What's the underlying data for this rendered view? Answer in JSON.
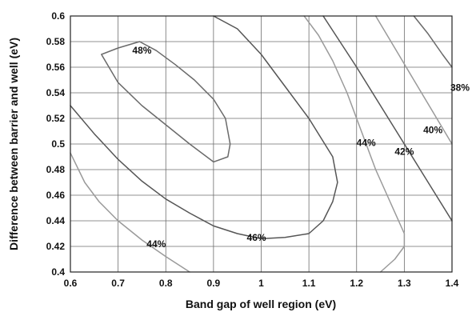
{
  "chart_data": {
    "type": "line",
    "title": "",
    "xlabel": "Band gap of well region (eV)",
    "ylabel": "Difference between barrier and well (eV)",
    "xlim": [
      0.6,
      1.4
    ],
    "ylim": [
      0.4,
      0.6
    ],
    "xticks": [
      0.6,
      0.7,
      0.8,
      0.9,
      1,
      1.1,
      1.2,
      1.3,
      1.4
    ],
    "xtick_labels": [
      "0.6",
      "0.7",
      "0.8",
      "0.9",
      "1",
      "1.1",
      "1.2",
      "1.3",
      "1.4"
    ],
    "yticks": [
      0.4,
      0.42,
      0.44,
      0.46,
      0.48,
      0.5,
      0.52,
      0.54,
      0.56,
      0.58,
      0.6
    ],
    "ytick_labels": [
      "0.4",
      "0.42",
      "0.44",
      "0.46",
      "0.48",
      "0.5",
      "0.52",
      "0.54",
      "0.56",
      "0.58",
      "0.6"
    ],
    "grid": true,
    "series": [
      {
        "name": "48%",
        "color": "#6a6a6a",
        "x": [
          0.745,
          0.7,
          0.665,
          0.7,
          0.75,
          0.8,
          0.85,
          0.9,
          0.93,
          0.935,
          0.925,
          0.9,
          0.86,
          0.82,
          0.78,
          0.745
        ],
        "y": [
          0.58,
          0.575,
          0.57,
          0.548,
          0.53,
          0.515,
          0.5,
          0.486,
          0.49,
          0.5,
          0.52,
          0.535,
          0.55,
          0.562,
          0.573,
          0.58
        ],
        "label_x": 0.75,
        "label_y": 0.573
      },
      {
        "name": "46%",
        "color": "#555555",
        "x": [
          0.6,
          0.65,
          0.7,
          0.75,
          0.8,
          0.85,
          0.9,
          0.95,
          1.0,
          1.05,
          1.1,
          1.13,
          1.15,
          1.16,
          1.15,
          1.1,
          1.05,
          1.0,
          0.95,
          0.9
        ],
        "y": [
          0.53,
          0.508,
          0.488,
          0.471,
          0.457,
          0.446,
          0.436,
          0.43,
          0.426,
          0.427,
          0.43,
          0.44,
          0.455,
          0.47,
          0.49,
          0.52,
          0.545,
          0.57,
          0.59,
          0.6
        ],
        "label_x": 0.99,
        "label_y": 0.427
      },
      {
        "name": "44%",
        "color": "#9a9a9a",
        "x": [
          0.6,
          0.63,
          0.66,
          0.7,
          0.75,
          0.8,
          0.85
        ],
        "y": [
          0.493,
          0.47,
          0.455,
          0.44,
          0.425,
          0.412,
          0.4
        ],
        "label_x": 0.78,
        "label_y": 0.422
      },
      {
        "name": "44%",
        "color": "#9a9a9a",
        "x": [
          1.09,
          1.12,
          1.15,
          1.18,
          1.21,
          1.24,
          1.27,
          1.3,
          1.3,
          1.28,
          1.25
        ],
        "y": [
          0.6,
          0.585,
          0.565,
          0.54,
          0.51,
          0.48,
          0.455,
          0.43,
          0.42,
          0.41,
          0.4
        ],
        "label_x": 1.22,
        "label_y": 0.501
      },
      {
        "name": "42%",
        "color": "#555555",
        "x": [
          1.13,
          1.2,
          1.25,
          1.3,
          1.35,
          1.4
        ],
        "y": [
          0.6,
          0.56,
          0.53,
          0.5,
          0.47,
          0.44
        ],
        "label_x": 1.3,
        "label_y": 0.494
      },
      {
        "name": "40%",
        "color": "#9a9a9a",
        "x": [
          1.24,
          1.28,
          1.32,
          1.36,
          1.4
        ],
        "y": [
          0.6,
          0.575,
          0.55,
          0.525,
          0.5
        ],
        "label_x": 1.36,
        "label_y": 0.511
      },
      {
        "name": "38%",
        "color": "#6a6a6a",
        "x": [
          1.32,
          1.35,
          1.38,
          1.4
        ],
        "y": [
          0.6,
          0.586,
          0.57,
          0.56
        ],
        "label_x": 1.4,
        "label_y": 0.544
      }
    ]
  }
}
